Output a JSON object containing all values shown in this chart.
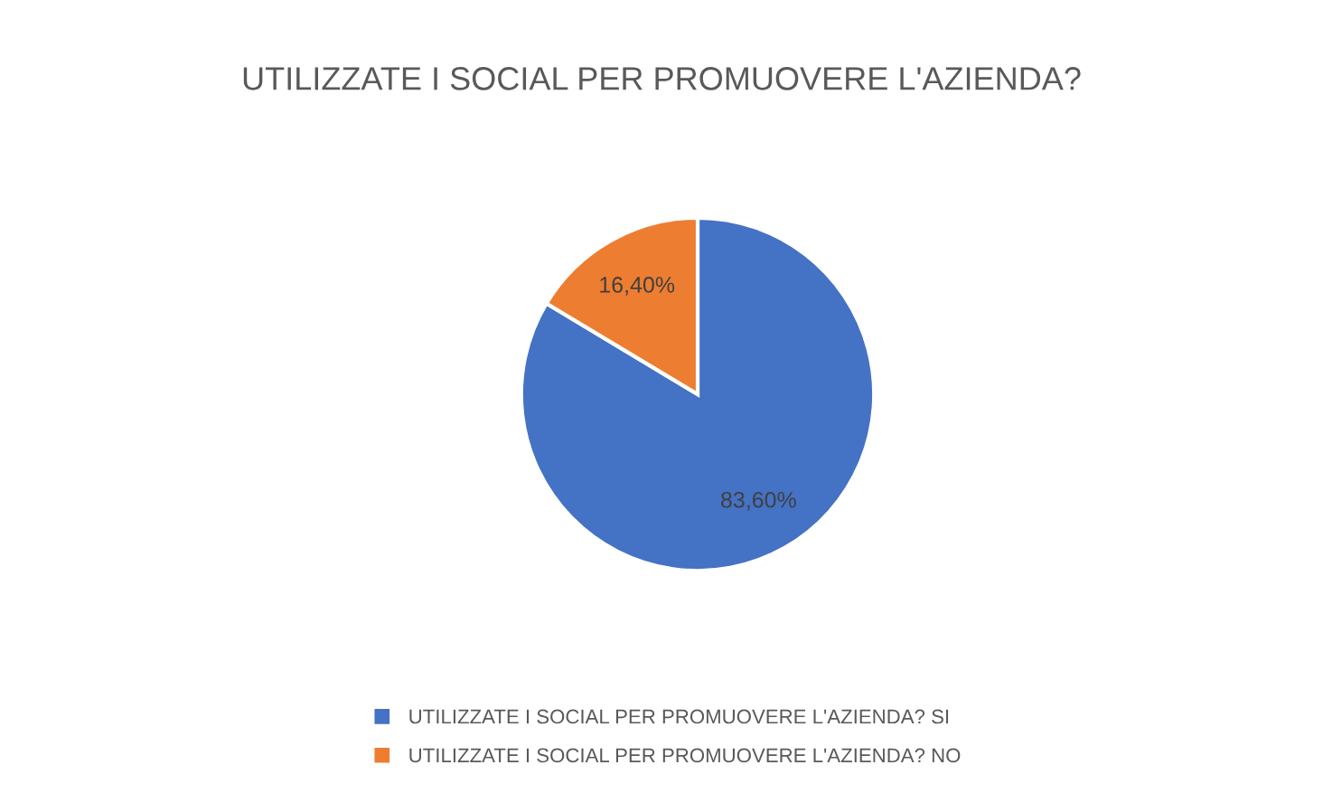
{
  "chart_data": {
    "type": "pie",
    "title": "UTILIZZATE I SOCIAL PER PROMUOVERE L'AZIENDA?",
    "categories": [
      "UTILIZZATE I SOCIAL PER PROMUOVERE L'AZIENDA? SI",
      "UTILIZZATE I SOCIAL PER PROMUOVERE L'AZIENDA? NO"
    ],
    "values": [
      83.6,
      16.4
    ],
    "value_labels": [
      "83,60%",
      "16,40%"
    ],
    "colors": [
      "#4472c4",
      "#ed7d31"
    ],
    "legend": "bottom"
  }
}
